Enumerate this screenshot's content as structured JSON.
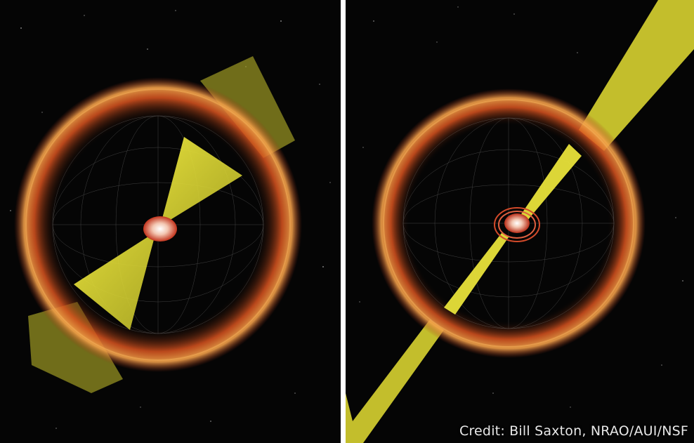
{
  "image": {
    "credit": "Credit: Bill Saxton, NRAO/AUI/NSF",
    "panels": [
      {
        "name": "left-panel",
        "description_icon": "wide-jet-shell-illustration"
      },
      {
        "name": "right-panel",
        "description_icon": "narrow-jet-shell-illustration"
      }
    ]
  },
  "colors": {
    "background": "#050505",
    "shell_outer": "#c8461e",
    "shell_inner": "#f0a040",
    "jet": "#e9e23a",
    "core": "#f4d0c0",
    "divider": "#ffffff",
    "credit_text": "#e8e8e8"
  }
}
